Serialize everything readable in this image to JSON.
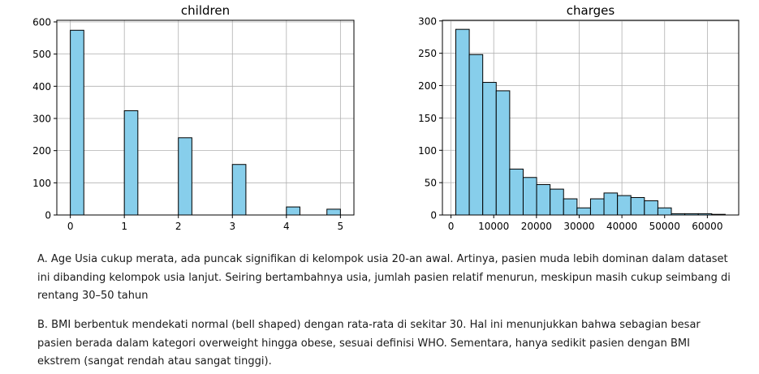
{
  "chart_data": [
    {
      "type": "bar",
      "title": "children",
      "xlabel": "",
      "ylabel": "",
      "bin_edges": [
        0,
        0.25,
        0.5,
        0.75,
        1,
        1.25,
        1.5,
        1.75,
        2,
        2.25,
        2.5,
        2.75,
        3,
        3.25,
        3.5,
        3.75,
        4,
        4.25,
        4.5,
        4.75,
        5
      ],
      "values": [
        574,
        0,
        0,
        0,
        324,
        0,
        0,
        0,
        240,
        0,
        0,
        0,
        157,
        0,
        0,
        0,
        25,
        0,
        0,
        18
      ],
      "xlim": [
        -0.25,
        5.25
      ],
      "ylim": [
        0,
        605
      ],
      "xticks": [
        0,
        1,
        2,
        3,
        4,
        5
      ],
      "xtick_labels": [
        "0",
        "1",
        "2",
        "3",
        "4",
        "5"
      ],
      "yticks": [
        0,
        100,
        200,
        300,
        400,
        500,
        600
      ],
      "ytick_labels": [
        "0",
        "100",
        "200",
        "300",
        "400",
        "500",
        "600"
      ],
      "grid": true,
      "bar_color": "#87CEEB",
      "edge_color": "#000000"
    },
    {
      "type": "bar",
      "title": "charges",
      "xlabel": "",
      "ylabel": "",
      "bin_edges": [
        1122,
        4275,
        7428,
        10582,
        13735,
        16888,
        20041,
        23194,
        26347,
        29500,
        32653,
        35806,
        38959,
        42112,
        45265,
        48418,
        51571,
        54724,
        57878,
        61031,
        64184
      ],
      "values": [
        287,
        248,
        205,
        192,
        71,
        58,
        47,
        40,
        25,
        11,
        25,
        34,
        30,
        27,
        22,
        11,
        2,
        2,
        2,
        1
      ],
      "xlim": [
        -2011,
        67337
      ],
      "ylim": [
        0,
        301
      ],
      "xticks": [
        0,
        10000,
        20000,
        30000,
        40000,
        50000,
        60000
      ],
      "xtick_labels": [
        "0",
        "10000",
        "20000",
        "30000",
        "40000",
        "50000",
        "60000"
      ],
      "yticks": [
        0,
        50,
        100,
        150,
        200,
        250,
        300
      ],
      "ytick_labels": [
        "0",
        "50",
        "100",
        "150",
        "200",
        "250",
        "300"
      ],
      "grid": true,
      "bar_color": "#87CEEB",
      "edge_color": "#000000"
    }
  ],
  "text": {
    "para_a": "A. Age Usia cukup merata, ada puncak signifikan di kelompok usia 20-an awal. Artinya, pasien muda lebih dominan dalam dataset ini dibanding kelompok usia lanjut. Seiring bertambahnya usia, jumlah pasien relatif menurun, meskipun masih cukup seimbang di rentang 30–50 tahun",
    "para_b": "B. BMI berbentuk mendekati normal (bell shaped) dengan rata-rata di sekitar 30. Hal ini menunjukkan bahwa sebagian besar pasien berada dalam kategori overweight hingga obese, sesuai definisi WHO. Sementara, hanya sedikit pasien dengan BMI ekstrem (sangat rendah atau sangat tinggi)."
  }
}
